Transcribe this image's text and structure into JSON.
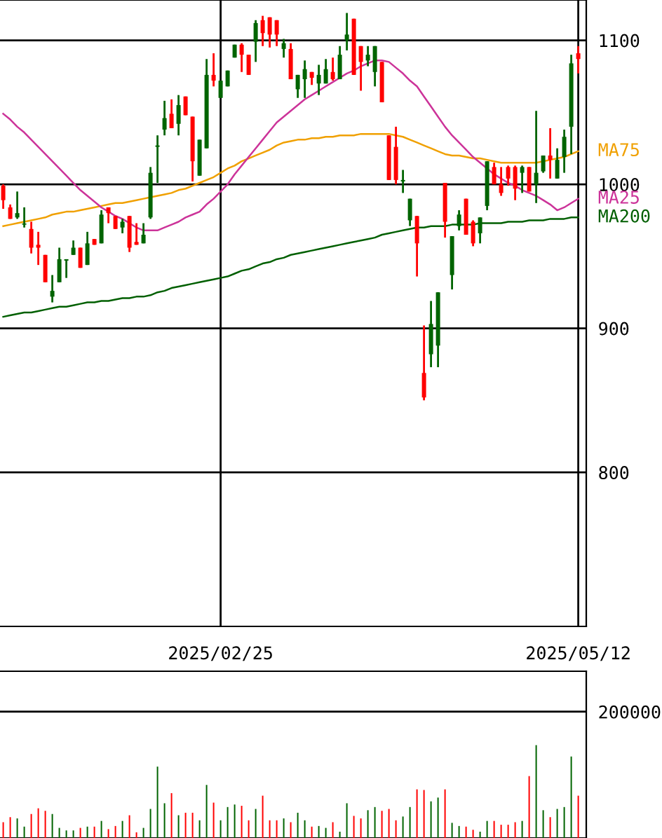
{
  "chart_data": [
    {
      "type": "candlestick",
      "categories": [
        null,
        null,
        null,
        null,
        null,
        null,
        null,
        null,
        null,
        null,
        null,
        null,
        null,
        null,
        null,
        null,
        null,
        null,
        null,
        null,
        null,
        null,
        null,
        null,
        null,
        null,
        null,
        null,
        null,
        null,
        null,
        "2025/02/25",
        null,
        null,
        null,
        null,
        null,
        null,
        null,
        null,
        null,
        null,
        null,
        null,
        null,
        null,
        null,
        null,
        null,
        null,
        null,
        null,
        null,
        null,
        null,
        null,
        null,
        null,
        null,
        null,
        null,
        null,
        null,
        null,
        null,
        null,
        null,
        null,
        null,
        null,
        null,
        null,
        null,
        null,
        null,
        null,
        null,
        null,
        null,
        null,
        null,
        null,
        "2025/05/12"
      ],
      "ohlc": [
        [
          999,
          1000,
          983,
          989
        ],
        [
          984,
          986,
          976,
          976
        ],
        [
          977,
          995,
          976,
          980
        ],
        [
          972,
          984,
          970,
          972
        ],
        [
          969,
          974,
          952,
          956
        ],
        [
          958,
          967,
          944,
          956
        ],
        [
          951,
          951,
          932,
          932
        ],
        [
          922,
          937,
          918,
          926
        ],
        [
          932,
          956,
          932,
          948
        ],
        [
          947,
          948,
          935,
          948
        ],
        [
          951,
          961,
          951,
          956
        ],
        [
          956,
          956,
          942,
          942
        ],
        [
          944,
          967,
          944,
          959
        ],
        [
          962,
          962,
          958,
          958
        ],
        [
          959,
          982,
          959,
          979
        ],
        [
          984,
          984,
          973,
          980
        ],
        [
          978,
          978,
          969,
          969
        ],
        [
          970,
          976,
          966,
          974
        ],
        [
          978,
          978,
          953,
          956
        ],
        [
          960,
          973,
          958,
          958
        ],
        [
          959,
          973,
          959,
          965
        ],
        [
          977,
          1012,
          976,
          1008
        ],
        [
          1026,
          1034,
          1001,
          1027
        ],
        [
          1038,
          1058,
          1034,
          1046
        ],
        [
          1049,
          1059,
          1039,
          1039
        ],
        [
          1042,
          1062,
          1034,
          1055
        ],
        [
          1061,
          1061,
          1048,
          1048
        ],
        [
          1047,
          1047,
          1002,
          1016
        ],
        [
          1006,
          1031,
          1006,
          1031
        ],
        [
          1025,
          1087,
          1025,
          1076
        ],
        [
          1076,
          1091,
          1068,
          1072
        ],
        [
          1060,
          1072,
          1060,
          1072
        ],
        [
          1068,
          1079,
          1068,
          1079
        ],
        [
          1088,
          1097,
          1088,
          1097
        ],
        [
          1097,
          1098,
          1078,
          1090
        ],
        [
          1090,
          1090,
          1076,
          1076
        ],
        [
          1099,
          1114,
          1085,
          1112
        ],
        [
          1114,
          1117,
          1096,
          1105
        ],
        [
          1116,
          1116,
          1095,
          1104
        ],
        [
          1114,
          1114,
          1096,
          1104
        ],
        [
          1094,
          1101,
          1088,
          1098
        ],
        [
          1094,
          1098,
          1073,
          1073
        ],
        [
          1066,
          1076,
          1060,
          1076
        ],
        [
          1073,
          1086,
          1060,
          1080
        ],
        [
          1078,
          1078,
          1069,
          1074
        ],
        [
          1070,
          1083,
          1062,
          1076
        ],
        [
          1070,
          1087,
          1070,
          1080
        ],
        [
          1078,
          1088,
          1072,
          1073
        ],
        [
          1073,
          1096,
          1073,
          1090
        ],
        [
          1100,
          1119,
          1093,
          1104
        ],
        [
          1115,
          1115,
          1076,
          1076
        ],
        [
          1096,
          1096,
          1065,
          1085
        ],
        [
          1086,
          1096,
          1082,
          1090
        ],
        [
          1078,
          1096,
          1068,
          1096
        ],
        [
          1085,
          1085,
          1057,
          1057
        ],
        [
          1034,
          1034,
          1003,
          1003
        ],
        [
          1026,
          1040,
          1000,
          1003
        ],
        [
          1002,
          1010,
          994,
          1003
        ],
        [
          975,
          990,
          971,
          990
        ],
        [
          978,
          978,
          936,
          959
        ],
        [
          869,
          902,
          850,
          852
        ],
        [
          882,
          919,
          873,
          903
        ],
        [
          888,
          925,
          873,
          925
        ],
        [
          1001,
          1001,
          963,
          974
        ],
        [
          937,
          964,
          927,
          964
        ],
        [
          971,
          982,
          968,
          979
        ],
        [
          990,
          990,
          965,
          965
        ],
        [
          974,
          975,
          957,
          959
        ],
        [
          966,
          977,
          959,
          977
        ],
        [
          985,
          1016,
          982,
          1016
        ],
        [
          1012,
          1015,
          1000,
          1000
        ],
        [
          1000,
          1012,
          992,
          994
        ],
        [
          1012,
          1013,
          999,
          1004
        ],
        [
          1012,
          1013,
          989,
          997
        ],
        [
          1008,
          1013,
          994,
          1012
        ],
        [
          1012,
          1012,
          995,
          995
        ],
        [
          1000,
          1051,
          987,
          1008
        ],
        [
          1009,
          1020,
          1008,
          1020
        ],
        [
          1020,
          1039,
          1004,
          1017
        ],
        [
          1004,
          1025,
          1004,
          1017
        ],
        [
          1019,
          1038,
          1008,
          1033
        ],
        [
          1040,
          1090,
          1021,
          1084
        ],
        [
          1091,
          1096,
          1077,
          1087
        ]
      ],
      "colors": [
        "#ff0000",
        "#ff0000",
        "#006400",
        "#006400",
        "#ff0000",
        "#ff0000",
        "#ff0000",
        "#006400",
        "#006400",
        "#006400",
        "#006400",
        "#ff0000",
        "#006400",
        "#ff0000",
        "#006400",
        "#ff0000",
        "#ff0000",
        "#006400",
        "#ff0000",
        "#ff0000",
        "#006400",
        "#006400",
        "#006400",
        "#006400",
        "#ff0000",
        "#006400",
        "#ff0000",
        "#ff0000",
        "#006400",
        "#006400",
        "#ff0000",
        "#006400",
        "#006400",
        "#006400",
        "#ff0000",
        "#ff0000",
        "#006400",
        "#ff0000",
        "#ff0000",
        "#ff0000",
        "#006400",
        "#ff0000",
        "#006400",
        "#006400",
        "#ff0000",
        "#006400",
        "#006400",
        "#ff0000",
        "#006400",
        "#006400",
        "#ff0000",
        "#ff0000",
        "#006400",
        "#006400",
        "#ff0000",
        "#ff0000",
        "#ff0000",
        "#006400",
        "#006400",
        "#ff0000",
        "#ff0000",
        "#006400",
        "#006400",
        "#ff0000",
        "#006400",
        "#006400",
        "#ff0000",
        "#ff0000",
        "#006400",
        "#006400",
        "#ff0000",
        "#ff0000",
        "#ff0000",
        "#ff0000",
        "#006400",
        "#ff0000",
        "#006400",
        "#006400",
        "#ff0000",
        "#006400",
        "#006400",
        "#006400",
        "#ff0000"
      ],
      "series": [
        {
          "name": "MA75",
          "type": "line",
          "color": "#f0a000",
          "values": [
            971,
            972,
            973,
            974,
            975,
            976,
            977,
            979,
            980,
            981,
            981,
            982,
            983,
            984,
            985,
            986,
            987,
            987,
            988,
            989,
            990,
            991,
            992,
            993,
            994,
            996,
            997,
            999,
            1001,
            1003,
            1005,
            1008,
            1011,
            1013,
            1016,
            1018,
            1020,
            1022,
            1024,
            1027,
            1029,
            1030,
            1031,
            1031,
            1032,
            1032,
            1033,
            1033,
            1034,
            1034,
            1034,
            1035,
            1035,
            1035,
            1035,
            1035,
            1034,
            1033,
            1031,
            1029,
            1027,
            1025,
            1023,
            1021,
            1020,
            1020,
            1019,
            1018,
            1018,
            1017,
            1016,
            1015,
            1015,
            1015,
            1015,
            1015,
            1015,
            1016,
            1017,
            1018,
            1019,
            1021,
            1023
          ]
        },
        {
          "name": "MA25",
          "type": "line",
          "color": "#cc3399",
          "values": [
            1049,
            1045,
            1040,
            1036,
            1031,
            1026,
            1021,
            1016,
            1011,
            1006,
            1001,
            996,
            992,
            988,
            984,
            981,
            978,
            976,
            973,
            970,
            968,
            968,
            968,
            970,
            972,
            974,
            977,
            979,
            981,
            986,
            990,
            995,
            1000,
            1007,
            1013,
            1019,
            1025,
            1031,
            1037,
            1043,
            1047,
            1051,
            1055,
            1059,
            1062,
            1065,
            1068,
            1071,
            1074,
            1077,
            1079,
            1082,
            1084,
            1086,
            1086,
            1085,
            1081,
            1077,
            1072,
            1068,
            1061,
            1054,
            1047,
            1040,
            1034,
            1029,
            1024,
            1019,
            1015,
            1011,
            1007,
            1004,
            1001,
            999,
            996,
            994,
            992,
            989,
            986,
            982,
            984,
            987,
            990
          ]
        },
        {
          "name": "MA200",
          "type": "line",
          "color": "#005f00",
          "values": [
            908,
            909,
            910,
            911,
            911,
            912,
            913,
            914,
            915,
            915,
            916,
            917,
            918,
            918,
            919,
            919,
            920,
            921,
            921,
            922,
            922,
            923,
            925,
            926,
            928,
            929,
            930,
            931,
            932,
            933,
            934,
            935,
            936,
            938,
            940,
            941,
            943,
            945,
            946,
            948,
            949,
            951,
            952,
            953,
            954,
            955,
            956,
            957,
            958,
            959,
            960,
            961,
            962,
            963,
            965,
            966,
            967,
            968,
            969,
            970,
            970,
            971,
            971,
            971,
            972,
            972,
            972,
            972,
            973,
            973,
            973,
            973,
            974,
            974,
            974,
            975,
            975,
            975,
            976,
            976,
            976,
            977,
            977
          ]
        }
      ],
      "ylim": [
        693,
        1128
      ],
      "yticks": [
        800,
        900,
        1000,
        1100
      ],
      "grid": true,
      "legend": false
    },
    {
      "type": "bar",
      "ylim": [
        0,
        264000
      ],
      "yticks": [
        200000
      ],
      "grid": "y",
      "categories": [
        null,
        null,
        null,
        null,
        null,
        null,
        null,
        null,
        null,
        null,
        null,
        null,
        null,
        null,
        null,
        null,
        null,
        null,
        null,
        null,
        null,
        null,
        null,
        null,
        null,
        null,
        null,
        null,
        null,
        null,
        null,
        null,
        null,
        null,
        null,
        null,
        null,
        null,
        null,
        null,
        null,
        null,
        null,
        null,
        null,
        null,
        null,
        null,
        null,
        null,
        null,
        null,
        null,
        null,
        null,
        null,
        null,
        null,
        null,
        null,
        null,
        null,
        null,
        null,
        null,
        null,
        null,
        null,
        null,
        null,
        null,
        null,
        null,
        null,
        null,
        null,
        null,
        null,
        null,
        null,
        null,
        null,
        null
      ],
      "values": [
        25000,
        33000,
        31000,
        18000,
        38000,
        47000,
        43000,
        38000,
        16000,
        12000,
        12000,
        16000,
        18000,
        18000,
        27000,
        14000,
        19000,
        27000,
        36000,
        9000,
        16000,
        46000,
        113000,
        55000,
        71000,
        36000,
        40000,
        40000,
        28000,
        84000,
        56000,
        28000,
        49000,
        53000,
        51000,
        28000,
        46000,
        67000,
        28000,
        28000,
        31000,
        25000,
        40000,
        28000,
        18000,
        19000,
        16000,
        25000,
        10000,
        55000,
        35000,
        31000,
        44000,
        49000,
        43000,
        46000,
        28000,
        34000,
        49000,
        77000,
        76000,
        58000,
        64000,
        77000,
        24000,
        19000,
        18000,
        13000,
        10000,
        27000,
        27000,
        21000,
        21000,
        25000,
        27000,
        98000,
        147000,
        44000,
        33000,
        46000,
        49000,
        129000,
        67000
      ],
      "colors": [
        "#ff0000",
        "#ff0000",
        "#006400",
        "#006400",
        "#ff0000",
        "#ff0000",
        "#ff0000",
        "#006400",
        "#006400",
        "#006400",
        "#006400",
        "#ff0000",
        "#006400",
        "#ff0000",
        "#006400",
        "#ff0000",
        "#ff0000",
        "#006400",
        "#ff0000",
        "#ff0000",
        "#006400",
        "#006400",
        "#006400",
        "#006400",
        "#ff0000",
        "#006400",
        "#ff0000",
        "#ff0000",
        "#006400",
        "#006400",
        "#ff0000",
        "#006400",
        "#006400",
        "#006400",
        "#ff0000",
        "#ff0000",
        "#006400",
        "#ff0000",
        "#ff0000",
        "#ff0000",
        "#006400",
        "#ff0000",
        "#006400",
        "#006400",
        "#ff0000",
        "#006400",
        "#006400",
        "#ff0000",
        "#006400",
        "#006400",
        "#ff0000",
        "#ff0000",
        "#006400",
        "#006400",
        "#ff0000",
        "#ff0000",
        "#ff0000",
        "#006400",
        "#006400",
        "#ff0000",
        "#ff0000",
        "#006400",
        "#006400",
        "#ff0000",
        "#006400",
        "#006400",
        "#ff0000",
        "#ff0000",
        "#006400",
        "#006400",
        "#ff0000",
        "#ff0000",
        "#ff0000",
        "#ff0000",
        "#006400",
        "#ff0000",
        "#006400",
        "#006400",
        "#ff0000",
        "#006400",
        "#006400",
        "#006400",
        "#ff0000"
      ]
    }
  ]
}
